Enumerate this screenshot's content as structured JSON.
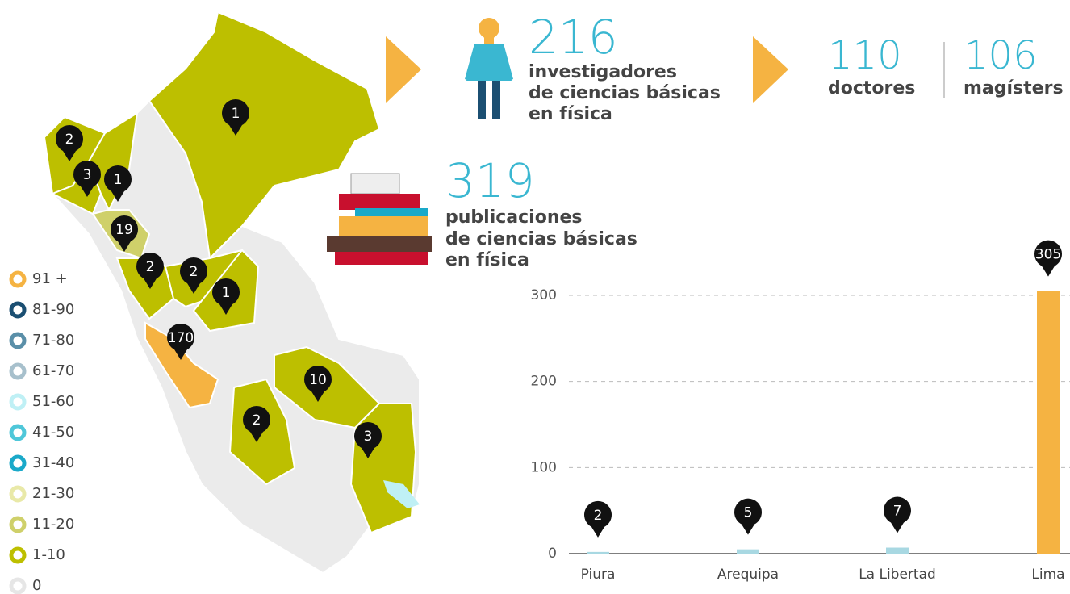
{
  "chart_data": {
    "type": "bar",
    "categories": [
      "Piura",
      "Arequipa",
      "La Libertad",
      "Lima"
    ],
    "values": [
      2,
      5,
      7,
      305
    ],
    "colors": [
      "#a8d8e2",
      "#a8d8e2",
      "#a8d8e2",
      "#f5b342"
    ],
    "ylim": [
      0,
      310
    ],
    "yticks": [
      0,
      100,
      200,
      300
    ],
    "grid": true
  },
  "stats": {
    "researchers": {
      "number": "216",
      "lines": [
        "investigadores",
        "de ciencias básicas",
        "en física"
      ]
    },
    "doctors": {
      "number": "110",
      "label": "doctores"
    },
    "masters": {
      "number": "106",
      "label": "magísters"
    },
    "publications": {
      "number": "319",
      "lines": [
        "publicaciones",
        "de ciencias básicas",
        "en física"
      ]
    }
  },
  "map": {
    "pins": [
      1,
      2,
      3,
      1,
      19,
      2,
      2,
      1,
      170,
      10,
      2,
      3
    ],
    "legend": [
      {
        "label": "91 +",
        "color": "#f5b342"
      },
      {
        "label": "81-90",
        "color": "#1b4f72"
      },
      {
        "label": "71-80",
        "color": "#5a8fa8"
      },
      {
        "label": "61-70",
        "color": "#a7c0cc"
      },
      {
        "label": "51-60",
        "color": "#bff0f5"
      },
      {
        "label": "41-50",
        "color": "#4fc7d9"
      },
      {
        "label": "31-40",
        "color": "#1aa9c9"
      },
      {
        "label": "21-30",
        "color": "#e9e9a8"
      },
      {
        "label": "11-20",
        "color": "#cfd06a"
      },
      {
        "label": "1-10",
        "color": "#bdbf00"
      },
      {
        "label": "0",
        "color": "#e6e6e6"
      }
    ]
  }
}
